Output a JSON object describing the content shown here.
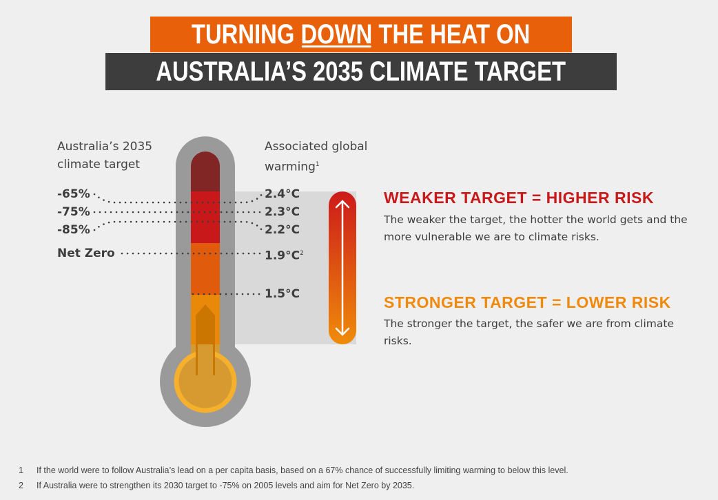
{
  "title": {
    "line1_before": "TURNING ",
    "line1_underlined": "DOWN",
    "line1_after": " THE HEAT ON",
    "line2": "AUSTRALIA’S 2035 CLIMATE TARGET"
  },
  "left_header": {
    "line1": "Australia’s 2035",
    "line2": "climate target"
  },
  "right_header": {
    "line1": "Associated global",
    "line2": "warming",
    "sup": "1"
  },
  "targets": [
    "-65%",
    "-75%",
    "-85%",
    "Net Zero"
  ],
  "warming": [
    {
      "value": "2.4°C",
      "sup": ""
    },
    {
      "value": "2.3°C",
      "sup": ""
    },
    {
      "value": "2.2°C",
      "sup": ""
    },
    {
      "value": "1.9°C",
      "sup": "2"
    },
    {
      "value": "1.5°C",
      "sup": ""
    }
  ],
  "weaker": {
    "heading": "WEAKER TARGET = HIGHER RISK",
    "text": "The weaker the target, the hotter the world gets and the more vulnerable we are to climate risks."
  },
  "stronger": {
    "heading": "STRONGER TARGET = LOWER RISK",
    "text": "The stronger the target, the safer we are from climate risks."
  },
  "footnotes": [
    {
      "num": "1",
      "text": "If the world were to follow Australia’s lead on a per capita basis, based on a 67% chance of successfully limiting warming to below this level."
    },
    {
      "num": "2",
      "text": "If Australia were to strengthen its 2030 target to -75% on 2005 levels and aim for Net Zero by 2035."
    }
  ],
  "colors": {
    "orange": "#e8600a",
    "dark": "#3d3d3d",
    "red": "#c8181a",
    "amber": "#ef8a0c"
  }
}
